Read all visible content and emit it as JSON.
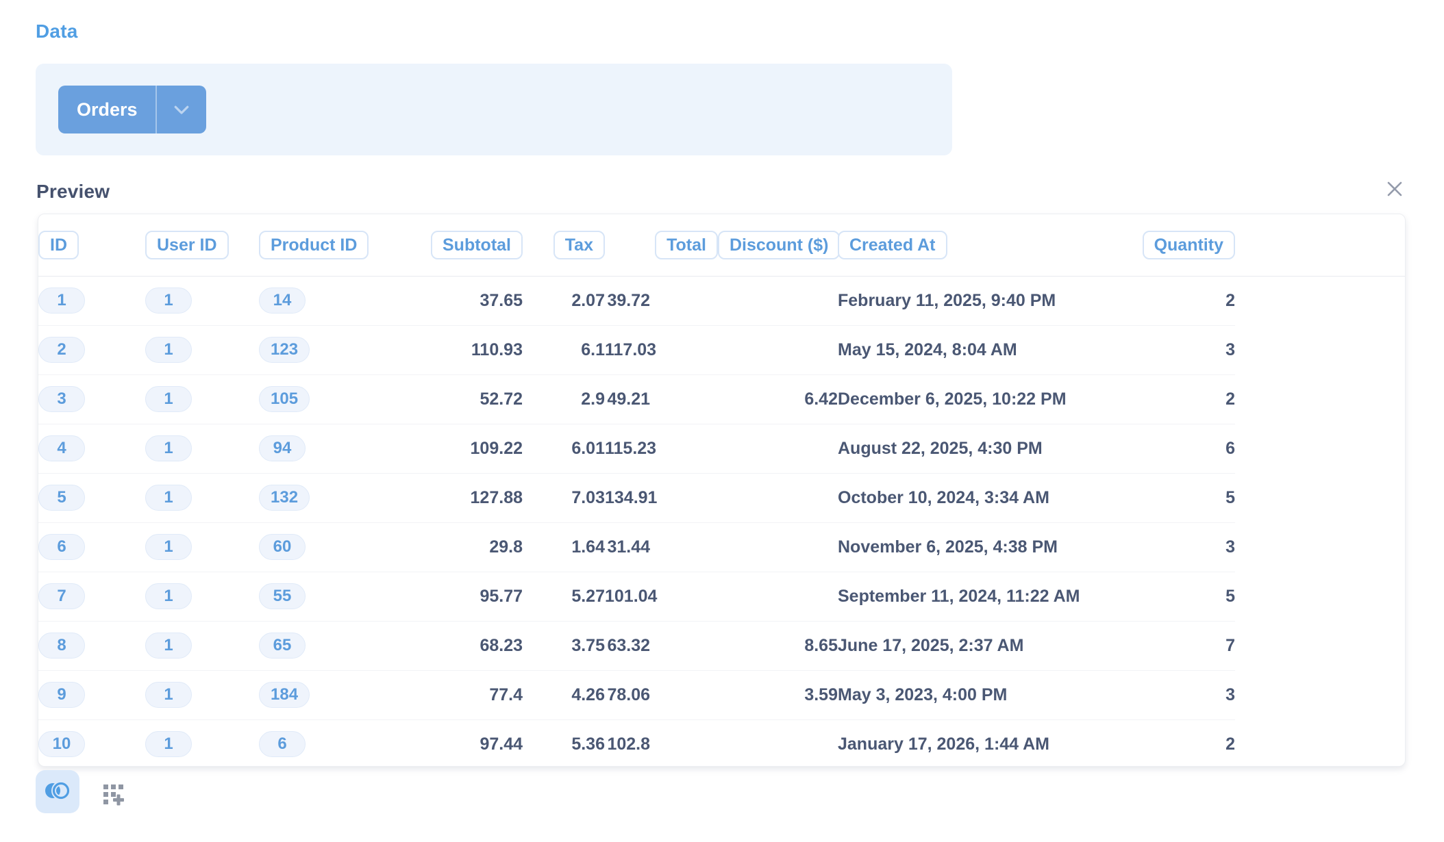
{
  "colors": {
    "brand_blue": "#509EE3",
    "panel_bg": "#EDF4FC",
    "text_dark": "#4A5773",
    "pill_text": "#5C9CDC"
  },
  "data_section": {
    "title": "Data",
    "source": {
      "name": "Orders"
    }
  },
  "preview": {
    "title": "Preview",
    "columns": [
      {
        "key": "id",
        "label": "ID",
        "align": "left",
        "pill": true
      },
      {
        "key": "user_id",
        "label": "User ID",
        "align": "left",
        "pill": true
      },
      {
        "key": "product_id",
        "label": "Product ID",
        "align": "left",
        "pill": true
      },
      {
        "key": "subtotal",
        "label": "Subtotal",
        "align": "right",
        "pill": false
      },
      {
        "key": "tax",
        "label": "Tax",
        "align": "right",
        "pill": false
      },
      {
        "key": "total",
        "label": "Total",
        "align": "right",
        "pill": false
      },
      {
        "key": "discount",
        "label": "Discount ($)",
        "align": "right",
        "pill": false
      },
      {
        "key": "created_at",
        "label": "Created At",
        "align": "left",
        "pill": false
      },
      {
        "key": "quantity",
        "label": "Quantity",
        "align": "right",
        "pill": false
      }
    ],
    "rows": [
      {
        "id": "1",
        "user_id": "1",
        "product_id": "14",
        "subtotal": "37.65",
        "tax": "2.07",
        "total": "39.72",
        "discount": "",
        "created_at": "February 11, 2025, 9:40 PM",
        "quantity": "2"
      },
      {
        "id": "2",
        "user_id": "1",
        "product_id": "123",
        "subtotal": "110.93",
        "tax": "6.1",
        "total": "117.03",
        "discount": "",
        "created_at": "May 15, 2024, 8:04 AM",
        "quantity": "3"
      },
      {
        "id": "3",
        "user_id": "1",
        "product_id": "105",
        "subtotal": "52.72",
        "tax": "2.9",
        "total": "49.21",
        "discount": "6.42",
        "created_at": "December 6, 2025, 10:22 PM",
        "quantity": "2"
      },
      {
        "id": "4",
        "user_id": "1",
        "product_id": "94",
        "subtotal": "109.22",
        "tax": "6.01",
        "total": "115.23",
        "discount": "",
        "created_at": "August 22, 2025, 4:30 PM",
        "quantity": "6"
      },
      {
        "id": "5",
        "user_id": "1",
        "product_id": "132",
        "subtotal": "127.88",
        "tax": "7.03",
        "total": "134.91",
        "discount": "",
        "created_at": "October 10, 2024, 3:34 AM",
        "quantity": "5"
      },
      {
        "id": "6",
        "user_id": "1",
        "product_id": "60",
        "subtotal": "29.8",
        "tax": "1.64",
        "total": "31.44",
        "discount": "",
        "created_at": "November 6, 2025, 4:38 PM",
        "quantity": "3"
      },
      {
        "id": "7",
        "user_id": "1",
        "product_id": "55",
        "subtotal": "95.77",
        "tax": "5.27",
        "total": "101.04",
        "discount": "",
        "created_at": "September 11, 2024, 11:22 AM",
        "quantity": "5"
      },
      {
        "id": "8",
        "user_id": "1",
        "product_id": "65",
        "subtotal": "68.23",
        "tax": "3.75",
        "total": "63.32",
        "discount": "8.65",
        "created_at": "June 17, 2025, 2:37 AM",
        "quantity": "7"
      },
      {
        "id": "9",
        "user_id": "1",
        "product_id": "184",
        "subtotal": "77.4",
        "tax": "4.26",
        "total": "78.06",
        "discount": "3.59",
        "created_at": "May 3, 2023, 4:00 PM",
        "quantity": "3"
      },
      {
        "id": "10",
        "user_id": "1",
        "product_id": "6",
        "subtotal": "97.44",
        "tax": "5.36",
        "total": "102.8",
        "discount": "",
        "created_at": "January 17, 2026, 1:44 AM",
        "quantity": "2"
      }
    ]
  },
  "footer": {
    "join_icon": "join-venn",
    "pick_columns_icon": "grid-plus"
  },
  "icons": {
    "chevron": "chevron-down",
    "close": "close-x"
  }
}
